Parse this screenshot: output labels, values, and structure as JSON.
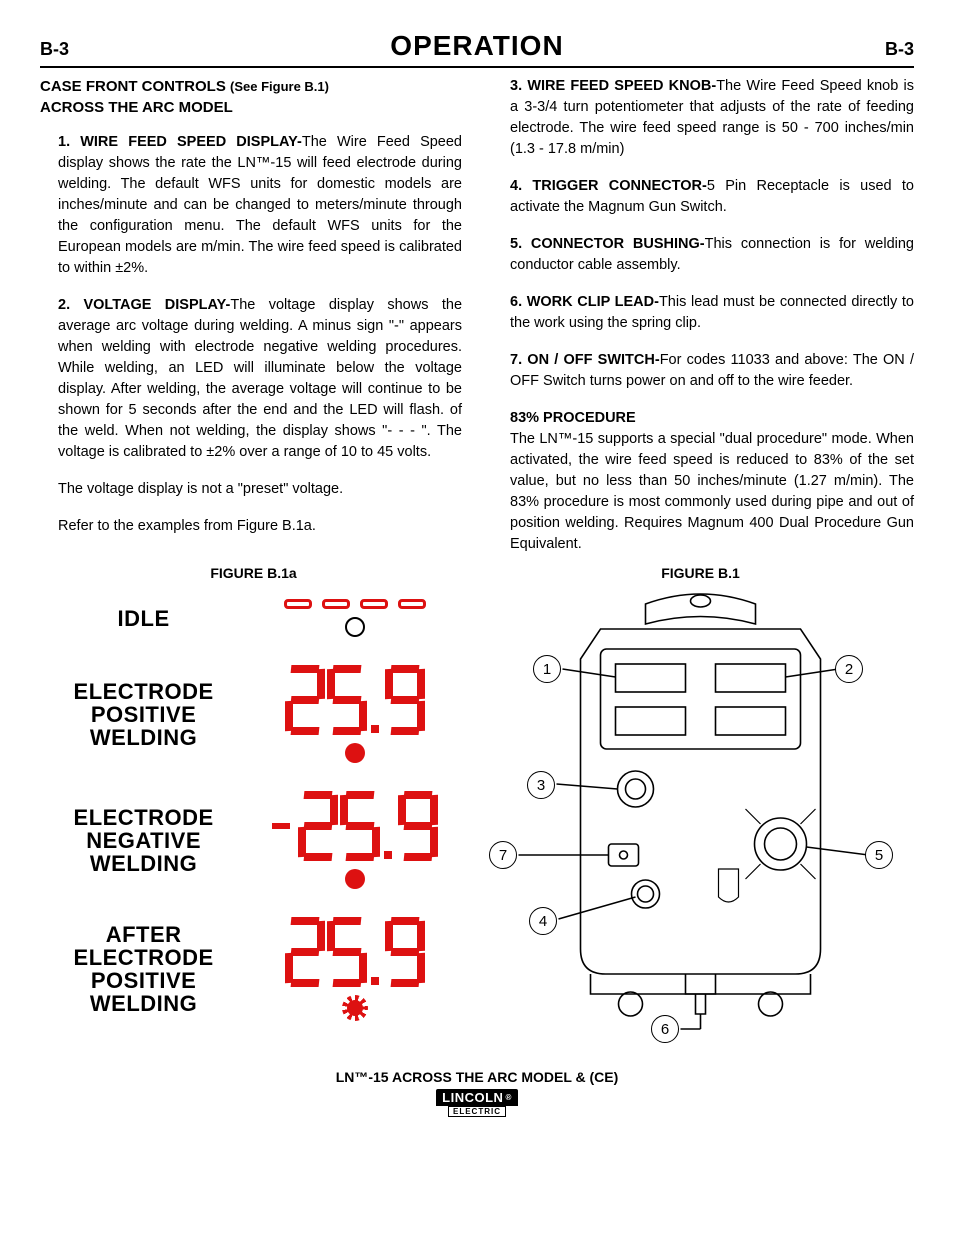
{
  "header": {
    "left": "B-3",
    "title": "OPERATION",
    "right": "B-3"
  },
  "left_col": {
    "heading_line1": "CASE FRONT CONTROLS",
    "heading_sub": "(See Figure B.1)",
    "heading_line2": "ACROSS THE ARC MODEL",
    "item1_lead": "1. WIRE FEED SPEED DISPLAY-",
    "item1_body": "The Wire Feed Speed display shows the rate the LN™-15 will feed electrode during welding.  The default WFS units for domestic models are inches/minute and can be changed to meters/minute through the configuration menu.  The default WFS units for the European models are m/min.  The wire feed speed is calibrated to within ±2%.",
    "item2_lead": "2. VOLTAGE DISPLAY-",
    "item2_body": "The voltage display shows the average arc voltage during welding.  A minus sign \"-\"  appears when welding with electrode negative welding procedures.  While welding, an LED will illuminate below the voltage display.  After welding,  the average voltage will continue to be shown for 5 seconds after the end and the LED will flash. of the weld.  When not welding, the display shows \"- - - \".   The voltage is calibrated to ±2% over a range of 10 to 45 volts.",
    "item2_p2": "The voltage display is not a \"preset\" voltage.",
    "item2_p3": "Refer to the examples from Figure B.1a."
  },
  "right_col": {
    "item3_lead": "3.  WIRE FEED SPEED KNOB-",
    "item3_body": "The Wire Feed Speed knob is a 3-3/4 turn potentiometer that adjusts of the rate of feeding electrode. The wire feed speed range is 50 - 700 inches/min (1.3 - 17.8 m/min)",
    "item4_lead": "4. TRIGGER CONNECTOR-",
    "item4_body": "5 Pin Receptacle is used to activate the Magnum Gun Switch.",
    "item5_lead": "5. CONNECTOR BUSHING-",
    "item5_body": "This connection is for welding conductor cable assembly.",
    "item6_lead": "6. WORK CLIP LEAD-",
    "item6_body": "This lead must be connected directly to the work using the spring clip.",
    "item7_lead": "7. ON / OFF SWITCH-",
    "item7_body": "For codes 11033 and above: The ON / OFF Switch turns power on and off to the wire feeder.",
    "proc_head": "83% PROCEDURE",
    "proc_body": "The LN™-15 supports a special \"dual procedure\" mode.  When activated, the wire feed speed is reduced to 83% of the set value, but no less than 50 inches/minute (1.27 m/min). The 83% procedure is most commonly used during pipe and out of position welding. Requires Magnum 400 Dual Procedure Gun Equivalent."
  },
  "figures": {
    "b1a_label": "FIGURE B.1a",
    "b1_label": "FIGURE B.1",
    "display_states": {
      "idle": "IDLE",
      "pos": "ELECTRODE POSITIVE WELDING",
      "neg": "ELECTRODE NEGATIVE WELDING",
      "after": "AFTER ELECTRODE POSITIVE WELDING",
      "value": "25.9",
      "neg_value": "-25.9",
      "accent_color": "#d11"
    },
    "callouts": [
      "1",
      "2",
      "3",
      "4",
      "5",
      "6",
      "7"
    ]
  },
  "footer": {
    "model": "LN™-15 ACROSS THE ARC MODEL & (CE)",
    "brand_top": "LINCOLN",
    "brand_bottom": "ELECTRIC"
  }
}
